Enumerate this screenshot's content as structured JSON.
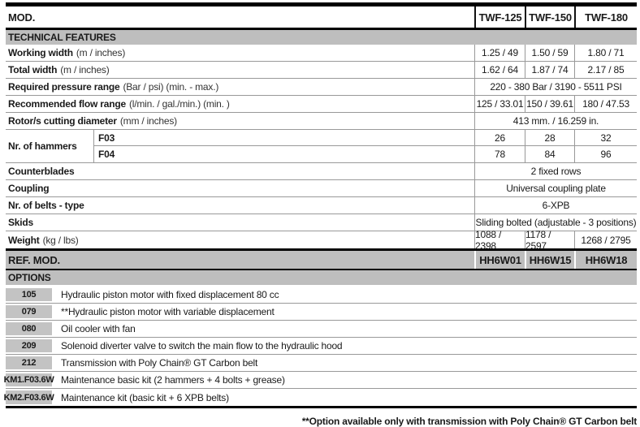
{
  "header": {
    "mod_label": "MOD.",
    "models": [
      "TWF-125",
      "TWF-150",
      "TWF-180"
    ]
  },
  "sections": {
    "technical": "TECHNICAL FEATURES",
    "ref_mod": "REF. MOD.",
    "options": "OPTIONS"
  },
  "rows": [
    {
      "label": "Working width",
      "unit": "(m / inches)",
      "values": [
        "1.25 / 49",
        "1.50 / 59",
        "1.80 / 71"
      ]
    },
    {
      "label": "Total width",
      "unit": "(m / inches)",
      "values": [
        "1.62 / 64",
        "1.87 / 74",
        "2.17 / 85"
      ]
    },
    {
      "label": "Required pressure range",
      "unit": "(Bar / psi) (min. - max.)",
      "span": "220 - 380 Bar / 3190 - 5511 PSI"
    },
    {
      "label": "Recommended flow range",
      "unit": "(l/min. / gal./min.) (min. )",
      "values": [
        "125 / 33.01",
        "150 / 39.61",
        "180 / 47.53"
      ]
    },
    {
      "label": "Rotor/s cutting diameter",
      "unit": "(mm / inches)",
      "span": "413 mm. / 16.259 in."
    },
    {
      "label": "Counterblades",
      "unit": "",
      "span": "2 fixed rows"
    },
    {
      "label": "Coupling",
      "unit": "",
      "span": "Universal coupling plate"
    },
    {
      "label": "Nr. of belts - type",
      "unit": "",
      "span": "6-XPB"
    },
    {
      "label": "Skids",
      "unit": "",
      "span": "Sliding bolted (adjustable - 3 positions)"
    },
    {
      "label": "Weight",
      "unit": "(kg / lbs)",
      "values": [
        "1088 / 2398",
        "1178 / 2597",
        "1268 / 2795"
      ]
    }
  ],
  "hammers": {
    "label": "Nr. of hammers",
    "sub": [
      {
        "code": "F03",
        "values": [
          "26",
          "28",
          "32"
        ]
      },
      {
        "code": "F04",
        "values": [
          "78",
          "84",
          "96"
        ]
      }
    ]
  },
  "ref_codes": [
    "HH6W01",
    "HH6W15",
    "HH6W18"
  ],
  "options": [
    {
      "code": "105",
      "desc": "Hydraulic piston motor with fixed displacement 80 cc"
    },
    {
      "code": "079",
      "desc": "**Hydraulic piston motor with variable displacement"
    },
    {
      "code": "080",
      "desc": "Oil cooler with fan"
    },
    {
      "code": "209",
      "desc": "Solenoid diverter valve to switch the main flow to the hydraulic hood"
    },
    {
      "code": "212",
      "desc": "Transmission with Poly Chain® GT Carbon belt"
    },
    {
      "code": "KM1.F03.6W",
      "desc": "Maintenance basic kit (2 hammers + 4 bolts + grease)"
    },
    {
      "code": "KM2.F03.6W",
      "desc": "Maintenance kit (basic kit + 6 XPB belts)"
    }
  ],
  "footer": {
    "note": "**Option available only with transmission with Poly Chain® GT Carbon belt"
  }
}
